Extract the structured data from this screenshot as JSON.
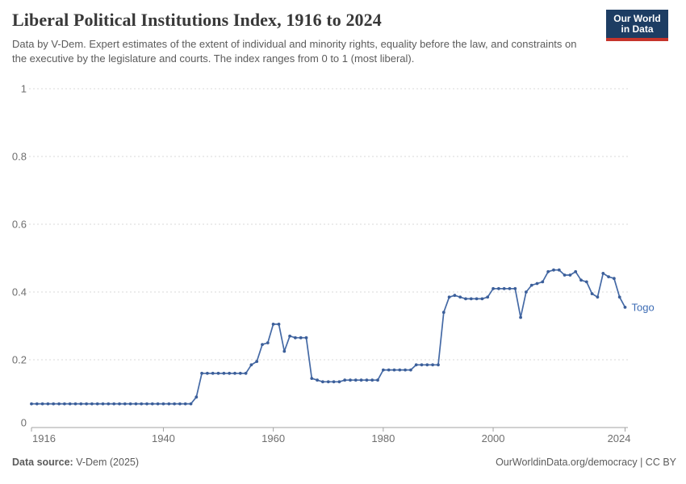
{
  "header": {
    "title": "Liberal Political Institutions Index, 1916 to 2024",
    "subtitle": "Data by V-Dem. Expert estimates of the extent of individual and minority rights, equality before the law, and constraints on the executive by the legislature and courts. The index ranges from 0 to 1 (most liberal).",
    "logo": {
      "line1": "Our World",
      "line2": "in Data",
      "bg_color": "#1d3d63",
      "bar_color": "#c5342b"
    }
  },
  "footer": {
    "source_label": "Data source:",
    "source_value": " V-Dem (2025)",
    "credit": "OurWorldinData.org/democracy | CC BY"
  },
  "chart_data": {
    "type": "line",
    "title": "Liberal Political Institutions Index, 1916 to 2024",
    "xlabel": "",
    "ylabel": "",
    "xlim": [
      1916,
      2024
    ],
    "ylim": [
      0,
      1
    ],
    "grid": "horizontal-dashed",
    "grid_color": "#d9d9d9",
    "axis_color": "#a3a3a3",
    "tick_label_color": "#6e6e6e",
    "x_ticks": [
      {
        "value": 1916,
        "label": "1916"
      },
      {
        "value": 1940,
        "label": "1940"
      },
      {
        "value": 1960,
        "label": "1960"
      },
      {
        "value": 1980,
        "label": "1980"
      },
      {
        "value": 2000,
        "label": "2000"
      },
      {
        "value": 2024,
        "label": "2024"
      }
    ],
    "y_ticks": [
      {
        "value": 1,
        "label": "1"
      },
      {
        "value": 0.8,
        "label": "0.8"
      },
      {
        "value": 0.6,
        "label": "0.6"
      },
      {
        "value": 0.4,
        "label": "0.4"
      },
      {
        "value": 0.2,
        "label": "0.2"
      },
      {
        "value": 0,
        "label": "0"
      }
    ],
    "series": [
      {
        "name": "Togo",
        "color": "#4469a5",
        "dot_color": "#3c5f9a",
        "label_color": "#3d6cb4",
        "years": [
          1916,
          1917,
          1918,
          1919,
          1920,
          1921,
          1922,
          1923,
          1924,
          1925,
          1926,
          1927,
          1928,
          1929,
          1930,
          1931,
          1932,
          1933,
          1934,
          1935,
          1936,
          1937,
          1938,
          1939,
          1940,
          1941,
          1942,
          1943,
          1944,
          1945,
          1946,
          1947,
          1948,
          1949,
          1950,
          1951,
          1952,
          1953,
          1954,
          1955,
          1956,
          1957,
          1958,
          1959,
          1960,
          1961,
          1962,
          1963,
          1964,
          1965,
          1966,
          1967,
          1968,
          1969,
          1970,
          1971,
          1972,
          1973,
          1974,
          1975,
          1976,
          1977,
          1978,
          1979,
          1980,
          1981,
          1982,
          1983,
          1984,
          1985,
          1986,
          1987,
          1988,
          1989,
          1990,
          1991,
          1992,
          1993,
          1994,
          1995,
          1996,
          1997,
          1998,
          1999,
          2000,
          2001,
          2002,
          2003,
          2004,
          2005,
          2006,
          2007,
          2008,
          2009,
          2010,
          2011,
          2012,
          2013,
          2014,
          2015,
          2016,
          2017,
          2018,
          2019,
          2020,
          2021,
          2022,
          2023,
          2024
        ],
        "values": [
          0.07,
          0.07,
          0.07,
          0.07,
          0.07,
          0.07,
          0.07,
          0.07,
          0.07,
          0.07,
          0.07,
          0.07,
          0.07,
          0.07,
          0.07,
          0.07,
          0.07,
          0.07,
          0.07,
          0.07,
          0.07,
          0.07,
          0.07,
          0.07,
          0.07,
          0.07,
          0.07,
          0.07,
          0.07,
          0.07,
          0.09,
          0.16,
          0.16,
          0.16,
          0.16,
          0.16,
          0.16,
          0.16,
          0.16,
          0.16,
          0.185,
          0.195,
          0.245,
          0.25,
          0.305,
          0.305,
          0.225,
          0.27,
          0.265,
          0.265,
          0.265,
          0.145,
          0.14,
          0.135,
          0.135,
          0.135,
          0.135,
          0.14,
          0.14,
          0.14,
          0.14,
          0.14,
          0.14,
          0.14,
          0.17,
          0.17,
          0.17,
          0.17,
          0.17,
          0.17,
          0.185,
          0.185,
          0.185,
          0.185,
          0.185,
          0.34,
          0.385,
          0.39,
          0.385,
          0.38,
          0.38,
          0.38,
          0.38,
          0.385,
          0.41,
          0.41,
          0.41,
          0.41,
          0.41,
          0.325,
          0.4,
          0.42,
          0.425,
          0.43,
          0.46,
          0.465,
          0.465,
          0.45,
          0.45,
          0.46,
          0.435,
          0.43,
          0.395,
          0.385,
          0.455,
          0.445,
          0.44,
          0.385,
          0.355
        ]
      }
    ]
  }
}
